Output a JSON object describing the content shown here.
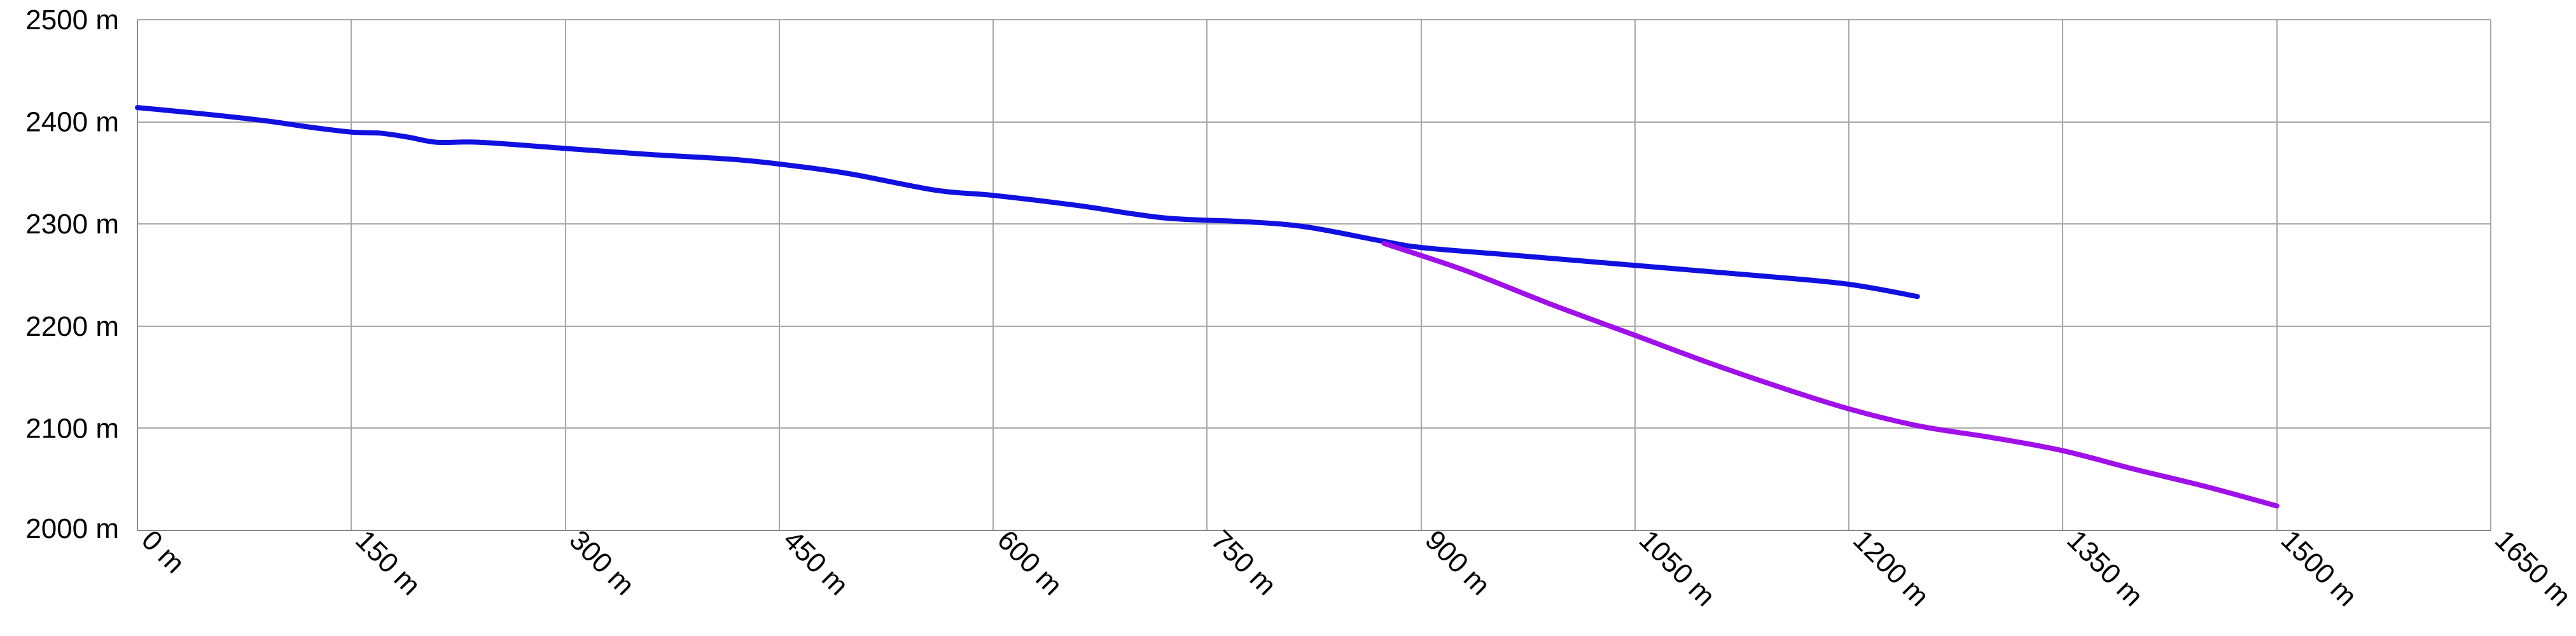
{
  "chart_data": {
    "type": "line",
    "title": "",
    "xlabel": "",
    "ylabel": "",
    "xlim": [
      0,
      1650
    ],
    "ylim": [
      2000,
      2500
    ],
    "grid": true,
    "x_ticks": [
      {
        "value": 0,
        "label": "0 m"
      },
      {
        "value": 150,
        "label": "150 m"
      },
      {
        "value": 300,
        "label": "300 m"
      },
      {
        "value": 450,
        "label": "450 m"
      },
      {
        "value": 600,
        "label": "600 m"
      },
      {
        "value": 750,
        "label": "750 m"
      },
      {
        "value": 900,
        "label": "900 m"
      },
      {
        "value": 1050,
        "label": "1050 m"
      },
      {
        "value": 1200,
        "label": "1200 m"
      },
      {
        "value": 1350,
        "label": "1350 m"
      },
      {
        "value": 1500,
        "label": "1500 m"
      },
      {
        "value": 1650,
        "label": "1650 m"
      }
    ],
    "y_ticks": [
      {
        "value": 2500,
        "label": "2500 m"
      },
      {
        "value": 2400,
        "label": "2400 m"
      },
      {
        "value": 2300,
        "label": "2300 m"
      },
      {
        "value": 2200,
        "label": "2200 m"
      },
      {
        "value": 2100,
        "label": "2100 m"
      },
      {
        "value": 2000,
        "label": "2000 m"
      }
    ],
    "series": [
      {
        "color": "#1010e0",
        "points": [
          [
            0,
            2414
          ],
          [
            45,
            2408
          ],
          [
            90,
            2401
          ],
          [
            120,
            2395
          ],
          [
            150,
            2390
          ],
          [
            170,
            2389
          ],
          [
            190,
            2385
          ],
          [
            210,
            2380
          ],
          [
            240,
            2380
          ],
          [
            300,
            2374
          ],
          [
            360,
            2368
          ],
          [
            420,
            2363
          ],
          [
            460,
            2357
          ],
          [
            500,
            2349
          ],
          [
            560,
            2333
          ],
          [
            600,
            2328
          ],
          [
            660,
            2318
          ],
          [
            720,
            2306
          ],
          [
            780,
            2302
          ],
          [
            820,
            2297
          ],
          [
            870,
            2284
          ],
          [
            900,
            2277
          ],
          [
            960,
            2270
          ],
          [
            1020,
            2263
          ],
          [
            1080,
            2256
          ],
          [
            1140,
            2249
          ],
          [
            1200,
            2241
          ],
          [
            1248,
            2229
          ]
        ]
      },
      {
        "color": "#a010e8",
        "points": [
          [
            874,
            2281
          ],
          [
            930,
            2255
          ],
          [
            990,
            2222
          ],
          [
            1050,
            2191
          ],
          [
            1100,
            2165
          ],
          [
            1150,
            2141
          ],
          [
            1200,
            2119
          ],
          [
            1250,
            2102
          ],
          [
            1300,
            2091
          ],
          [
            1350,
            2078
          ],
          [
            1400,
            2060
          ],
          [
            1450,
            2043
          ],
          [
            1500,
            2024
          ]
        ]
      }
    ]
  }
}
